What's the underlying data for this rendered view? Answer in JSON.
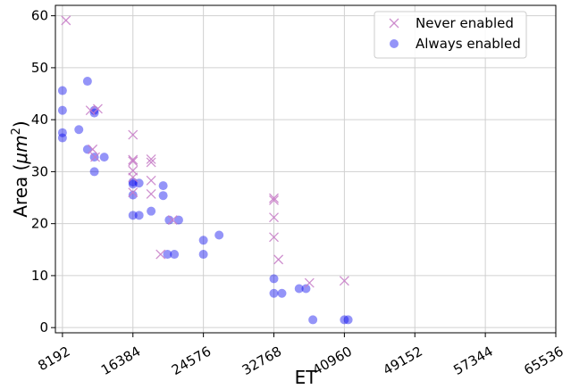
{
  "chart_data": {
    "type": "scatter",
    "title": "",
    "xlabel": "ET",
    "ylabel_prefix": "Area (",
    "ylabel_unit": "μm",
    "ylabel_exp": "2",
    "ylabel_suffix": ")",
    "xlim": [
      7372.8,
      65536
    ],
    "ylim": [
      -1,
      62
    ],
    "x_ticks": [
      8192,
      16384,
      24576,
      32768,
      40960,
      49152,
      57344,
      65536
    ],
    "x_tick_labels": [
      "8192",
      "16384",
      "24576",
      "32768",
      "40960",
      "49152",
      "57344",
      "65536"
    ],
    "y_ticks": [
      0,
      10,
      20,
      30,
      40,
      50,
      60
    ],
    "y_tick_labels": [
      "0",
      "10",
      "20",
      "30",
      "40",
      "50",
      "60"
    ],
    "grid": true,
    "legend_position": "top-right",
    "series": [
      {
        "name": "Never enabled",
        "marker": "x",
        "color": "#c77cc7",
        "points": [
          [
            8600,
            59.1
          ],
          [
            11700,
            34.3
          ],
          [
            11450,
            41.8
          ],
          [
            12300,
            42.1
          ],
          [
            12000,
            32.8
          ],
          [
            16384,
            37.1
          ],
          [
            16384,
            32.3
          ],
          [
            16384,
            32.0
          ],
          [
            16384,
            30.2
          ],
          [
            16384,
            28.9
          ],
          [
            16384,
            26.0
          ],
          [
            18500,
            32.4
          ],
          [
            18500,
            31.8
          ],
          [
            18500,
            28.3
          ],
          [
            18500,
            25.7
          ],
          [
            19600,
            14.1
          ],
          [
            21000,
            20.7
          ],
          [
            32768,
            24.9
          ],
          [
            32768,
            24.5
          ],
          [
            32768,
            21.2
          ],
          [
            32768,
            17.4
          ],
          [
            33300,
            13.1
          ],
          [
            36900,
            8.6
          ],
          [
            40960,
            9.0
          ]
        ]
      },
      {
        "name": "Always enabled",
        "marker": "o",
        "color": "#0000ee",
        "points": [
          [
            8192,
            45.6
          ],
          [
            8192,
            41.8
          ],
          [
            8192,
            37.5
          ],
          [
            8192,
            36.5
          ],
          [
            10100,
            38.1
          ],
          [
            11100,
            47.4
          ],
          [
            11100,
            34.3
          ],
          [
            11900,
            41.8
          ],
          [
            11900,
            41.3
          ],
          [
            11900,
            32.8
          ],
          [
            11900,
            30.0
          ],
          [
            13050,
            32.8
          ],
          [
            16384,
            28.0
          ],
          [
            16384,
            27.6
          ],
          [
            16384,
            25.5
          ],
          [
            16384,
            21.6
          ],
          [
            17100,
            27.8
          ],
          [
            17100,
            21.6
          ],
          [
            18500,
            22.4
          ],
          [
            19900,
            27.3
          ],
          [
            19900,
            25.4
          ],
          [
            20600,
            20.7
          ],
          [
            20400,
            14.1
          ],
          [
            21200,
            14.1
          ],
          [
            21700,
            20.7
          ],
          [
            24576,
            16.8
          ],
          [
            24576,
            14.1
          ],
          [
            26400,
            17.8
          ],
          [
            32768,
            9.4
          ],
          [
            32768,
            6.6
          ],
          [
            33700,
            6.6
          ],
          [
            35700,
            7.5
          ],
          [
            36500,
            7.5
          ],
          [
            37300,
            1.5
          ],
          [
            40960,
            1.5
          ],
          [
            41400,
            1.5
          ]
        ]
      }
    ]
  }
}
